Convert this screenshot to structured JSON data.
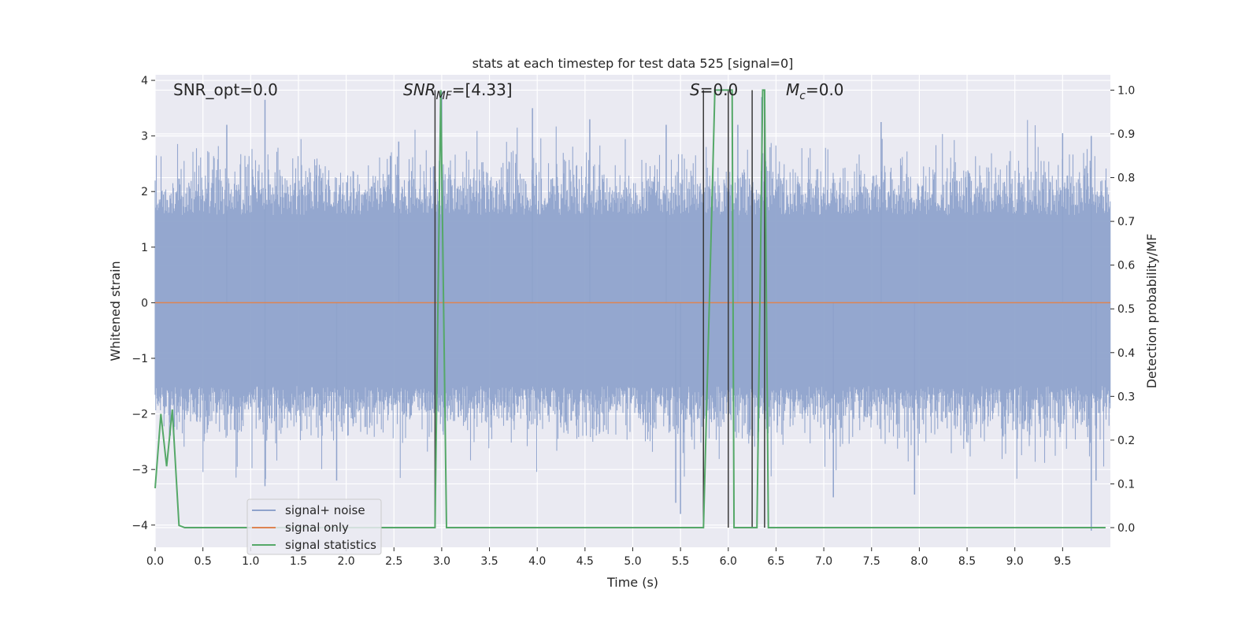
{
  "chart_data": {
    "type": "line",
    "title": "stats at each timestep for test data 525 [signal=0]",
    "xlabel": "Time (s)",
    "ylabel_left": "Whitened strain",
    "ylabel_right": "Detection probability/MF",
    "xlim": [
      0.0,
      10.0
    ],
    "ylim_left": [
      -4.4,
      4.1
    ],
    "ylim_right": [
      -0.045,
      1.035
    ],
    "x_ticks": [
      "0.0",
      "0.5",
      "1.0",
      "1.5",
      "2.0",
      "2.5",
      "3.0",
      "3.5",
      "4.0",
      "4.5",
      "5.0",
      "5.5",
      "6.0",
      "6.5",
      "7.0",
      "7.5",
      "8.0",
      "8.5",
      "9.0",
      "9.5"
    ],
    "y_ticks_left": [
      "4",
      "3",
      "2",
      "1",
      "0",
      "−1",
      "−2",
      "−3",
      "−4"
    ],
    "y_ticks_right": [
      "1.0",
      "0.9",
      "0.8",
      "0.7",
      "0.6",
      "0.5",
      "0.4",
      "0.3",
      "0.2",
      "0.1",
      "0.0"
    ],
    "grid": true,
    "legend_position": "lower-left",
    "annotations": {
      "snr_opt": "SNR_opt=0.0",
      "snr_mf_label": "SNR",
      "snr_mf_sub": "MF",
      "snr_mf_value": "=[4.33]",
      "s_label": "S",
      "s_value": "=0.0",
      "mc_label": "M",
      "mc_sub": "c",
      "mc_value": "=0.0"
    },
    "series": [
      {
        "name": "signal+ noise",
        "color": "#8fa3cc",
        "axis": "left",
        "note_envelope": true,
        "spikes": [
          [
            0.75,
            3.2
          ],
          [
            1.15,
            3.65
          ],
          [
            2.55,
            2.9
          ],
          [
            3.0,
            3.8
          ],
          [
            3.95,
            3.5
          ],
          [
            4.55,
            3.3
          ],
          [
            5.35,
            3.2
          ],
          [
            6.1,
            3.2
          ],
          [
            6.35,
            3.7
          ],
          [
            7.6,
            3.25
          ],
          [
            9.5,
            3.05
          ],
          [
            9.8,
            3.0
          ],
          [
            1.15,
            -3.3
          ],
          [
            1.9,
            -3.2
          ],
          [
            5.45,
            -3.6
          ],
          [
            5.5,
            -3.8
          ],
          [
            7.1,
            -3.5
          ],
          [
            7.95,
            -3.45
          ],
          [
            9.8,
            -4.1
          ],
          [
            9.85,
            -3.2
          ]
        ],
        "envelope_upper": 2.1,
        "envelope_lower": -2.0
      },
      {
        "name": "signal only",
        "color": "#dd8452",
        "axis": "left",
        "x": [
          0.0,
          10.0
        ],
        "y": [
          0.0,
          0.0
        ]
      },
      {
        "name": "signal statistics",
        "color": "#55a868",
        "axis": "right",
        "x": [
          0.0,
          0.06,
          0.12,
          0.18,
          0.25,
          0.31,
          2.93,
          2.99,
          3.05,
          5.74,
          5.86,
          6.04,
          6.06,
          6.3,
          6.36,
          6.38,
          6.42,
          9.95
        ],
        "y": [
          0.09,
          0.26,
          0.14,
          0.27,
          0.005,
          0.0,
          0.0,
          1.0,
          0.0,
          0.0,
          1.0,
          1.0,
          0.0,
          0.0,
          1.0,
          1.0,
          0.0,
          0.0
        ]
      }
    ],
    "vertical_lines": {
      "color": "#3a3a3a",
      "x": [
        2.93,
        5.74,
        6.0,
        6.25,
        6.38
      ]
    }
  }
}
